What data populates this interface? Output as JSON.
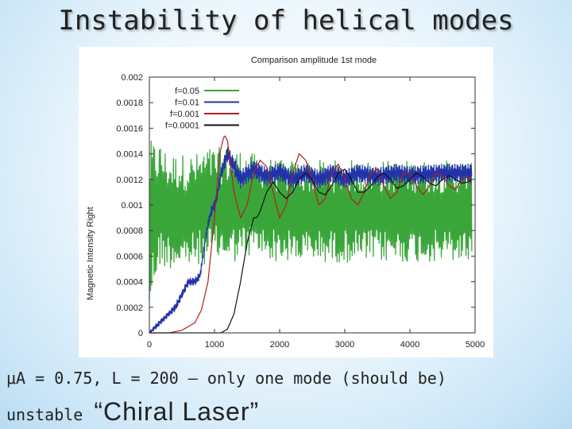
{
  "slide": {
    "title": "Instability of helical modes",
    "caption_line1": "μA = 0.75, L = 200 – only one mode (should be)",
    "caption_word": "unstable",
    "caption_big": "“Chiral Laser”"
  },
  "chart_data": {
    "type": "line",
    "title": "Comparison amplitude 1st mode",
    "xlabel": "",
    "ylabel": "Magnetic Intensity Right",
    "xlim": [
      0,
      5000
    ],
    "ylim": [
      0,
      0.002
    ],
    "x_ticks": [
      "0",
      "1000",
      "2000",
      "3000",
      "4000",
      "5000"
    ],
    "y_ticks": [
      "0",
      "0.0002",
      "0.0004",
      "0.0006",
      "0.0008",
      "0.001",
      "0.0012",
      "0.0014",
      "0.0016",
      "0.0018",
      "0.002"
    ],
    "grid": false,
    "legend_position": "top-left",
    "series": [
      {
        "name": "f=0.05",
        "color": "#3aa63a",
        "style": "noisy",
        "x": [
          0,
          50,
          150,
          300,
          500,
          700,
          900,
          1100,
          1300,
          1600,
          2000,
          2500,
          3000,
          3500,
          4000,
          4500,
          4950
        ],
        "y": [
          0.0008,
          0.0009,
          0.001,
          0.00095,
          0.00095,
          0.00095,
          0.001,
          0.001,
          0.001,
          0.001,
          0.00095,
          0.00095,
          0.00095,
          0.00095,
          0.00095,
          0.00095,
          0.00095
        ],
        "amplitude": [
          0.0007,
          0.0006,
          0.0005,
          0.00045,
          0.00045,
          0.00045,
          0.00045,
          0.00045,
          0.00045,
          0.0004,
          0.0004,
          0.0004,
          0.0004,
          0.0004,
          0.0004,
          0.0004,
          0.0004
        ]
      },
      {
        "name": "f=0.01",
        "color": "#2233aa",
        "style": "oscillating",
        "x": [
          0,
          100,
          200,
          300,
          400,
          500,
          600,
          700,
          780,
          850,
          900,
          950,
          1000,
          1050,
          1100,
          1200,
          1300,
          1400,
          1600,
          1800,
          2000,
          2200,
          2400,
          2600,
          2800,
          3000,
          3200,
          3500,
          3800,
          4000,
          4500,
          4950
        ],
        "y": [
          0.0,
          5e-05,
          0.0001,
          0.00015,
          0.0002,
          0.0003,
          0.0004,
          0.0004,
          0.00045,
          0.0007,
          0.00085,
          0.00095,
          0.001,
          0.0011,
          0.00125,
          0.0014,
          0.0013,
          0.0012,
          0.00128,
          0.00122,
          0.00126,
          0.0012,
          0.00125,
          0.0012,
          0.00125,
          0.0012,
          0.00125,
          0.00122,
          0.00125,
          0.00123,
          0.00125,
          0.00125
        ],
        "amplitude": [
          1e-05,
          2e-05,
          2e-05,
          2e-05,
          3e-05,
          3e-05,
          3e-05,
          3e-05,
          3e-05,
          3e-05,
          3e-05,
          4e-05,
          4e-05,
          5e-05,
          5e-05,
          6e-05,
          7e-05,
          7e-05,
          7e-05,
          7e-05,
          7e-05,
          7e-05,
          7e-05,
          7e-05,
          7e-05,
          7e-05,
          7e-05,
          7e-05,
          7e-05,
          7e-05,
          7e-05,
          7e-05
        ]
      },
      {
        "name": "f=0.001",
        "color": "#b02020",
        "style": "smooth",
        "x": [
          0,
          300,
          500,
          700,
          800,
          900,
          1000,
          1080,
          1150,
          1200,
          1300,
          1400,
          1500,
          1600,
          1700,
          1800,
          1900,
          2000,
          2100,
          2200,
          2300,
          2400,
          2500,
          2600,
          2700,
          2800,
          2900,
          3000,
          3100,
          3200,
          3300,
          3400,
          3500,
          3600,
          3700,
          3800,
          3900,
          4000,
          4100,
          4200,
          4300,
          4400,
          4500,
          4600,
          4700,
          4800,
          4900,
          4950
        ],
        "y": [
          0.0,
          0.0,
          2e-05,
          8e-05,
          0.00018,
          0.0004,
          0.0009,
          0.0014,
          0.00155,
          0.0015,
          0.0011,
          0.0009,
          0.001,
          0.00125,
          0.00135,
          0.0013,
          0.0011,
          0.0009,
          0.001,
          0.00125,
          0.0014,
          0.00135,
          0.0012,
          0.001,
          0.00105,
          0.00125,
          0.00132,
          0.0012,
          0.00105,
          0.001,
          0.0011,
          0.00125,
          0.00128,
          0.00115,
          0.00105,
          0.0011,
          0.00125,
          0.00125,
          0.00115,
          0.00108,
          0.00115,
          0.00125,
          0.00123,
          0.00115,
          0.00112,
          0.0012,
          0.00122,
          0.00115
        ],
        "amplitude": [
          0
        ]
      },
      {
        "name": "f=0.0001",
        "color": "#111111",
        "style": "smooth",
        "x": [
          0,
          1100,
          1200,
          1300,
          1400,
          1500,
          1600,
          1650,
          1700,
          1800,
          1900,
          2000,
          2100,
          2200,
          2300,
          2400,
          2500,
          2600,
          2700,
          2800,
          2900,
          3000,
          3100,
          3200,
          3300,
          3400,
          3500,
          3600,
          3700,
          3800,
          3900,
          4000,
          4100,
          4200,
          4300,
          4400,
          4500,
          4600,
          4700,
          4800,
          4900,
          4950
        ],
        "y": [
          0.0,
          0.0,
          3e-05,
          0.00015,
          0.0004,
          0.0007,
          0.0009,
          0.0009,
          0.00095,
          0.0011,
          0.00118,
          0.0011,
          0.00105,
          0.0011,
          0.0012,
          0.00125,
          0.0012,
          0.0011,
          0.00108,
          0.00115,
          0.00125,
          0.00128,
          0.0012,
          0.0011,
          0.0011,
          0.00115,
          0.00122,
          0.00125,
          0.0012,
          0.00113,
          0.00115,
          0.0012,
          0.00125,
          0.00122,
          0.00117,
          0.00115,
          0.0012,
          0.00123,
          0.0012,
          0.00117,
          0.00118,
          0.0012
        ],
        "amplitude": [
          0
        ]
      }
    ]
  }
}
